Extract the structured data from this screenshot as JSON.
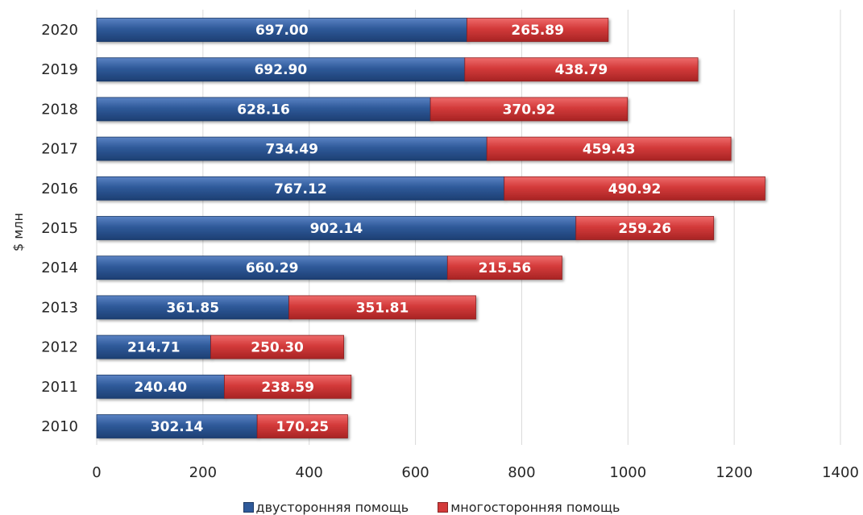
{
  "chart_data": {
    "type": "bar",
    "orientation": "horizontal",
    "stacked": true,
    "ylabel": "$ млн",
    "categories": [
      "2010",
      "2011",
      "2012",
      "2013",
      "2014",
      "2015",
      "2016",
      "2017",
      "2018",
      "2019",
      "2020"
    ],
    "series": [
      {
        "name": "двусторонняя помощь",
        "color": "#2f5a9a",
        "values": [
          302.14,
          240.4,
          214.71,
          361.85,
          660.29,
          902.14,
          767.12,
          734.49,
          628.16,
          692.9,
          697.0
        ],
        "labels": [
          "302.14",
          "240.40",
          "214.71",
          "361.85",
          "660.29",
          "902.14",
          "767.12",
          "734.49",
          "628.16",
          "692.90",
          "697.00"
        ]
      },
      {
        "name": "многосторонняя помощь",
        "color": "#d33a3a",
        "values": [
          170.25,
          238.59,
          250.3,
          351.81,
          215.56,
          259.26,
          490.92,
          459.43,
          370.92,
          438.79,
          265.89
        ],
        "labels": [
          "170.25",
          "238.59",
          "250.30",
          "351.81",
          "215.56",
          "259.26",
          "490.92",
          "459.43",
          "370.92",
          "438.79",
          "265.89"
        ]
      }
    ],
    "xlim": [
      0,
      1400
    ],
    "x_ticks": [
      "0",
      "200",
      "400",
      "600",
      "800",
      "1000",
      "1200",
      "1400"
    ],
    "grid": true,
    "legend_position": "bottom"
  }
}
